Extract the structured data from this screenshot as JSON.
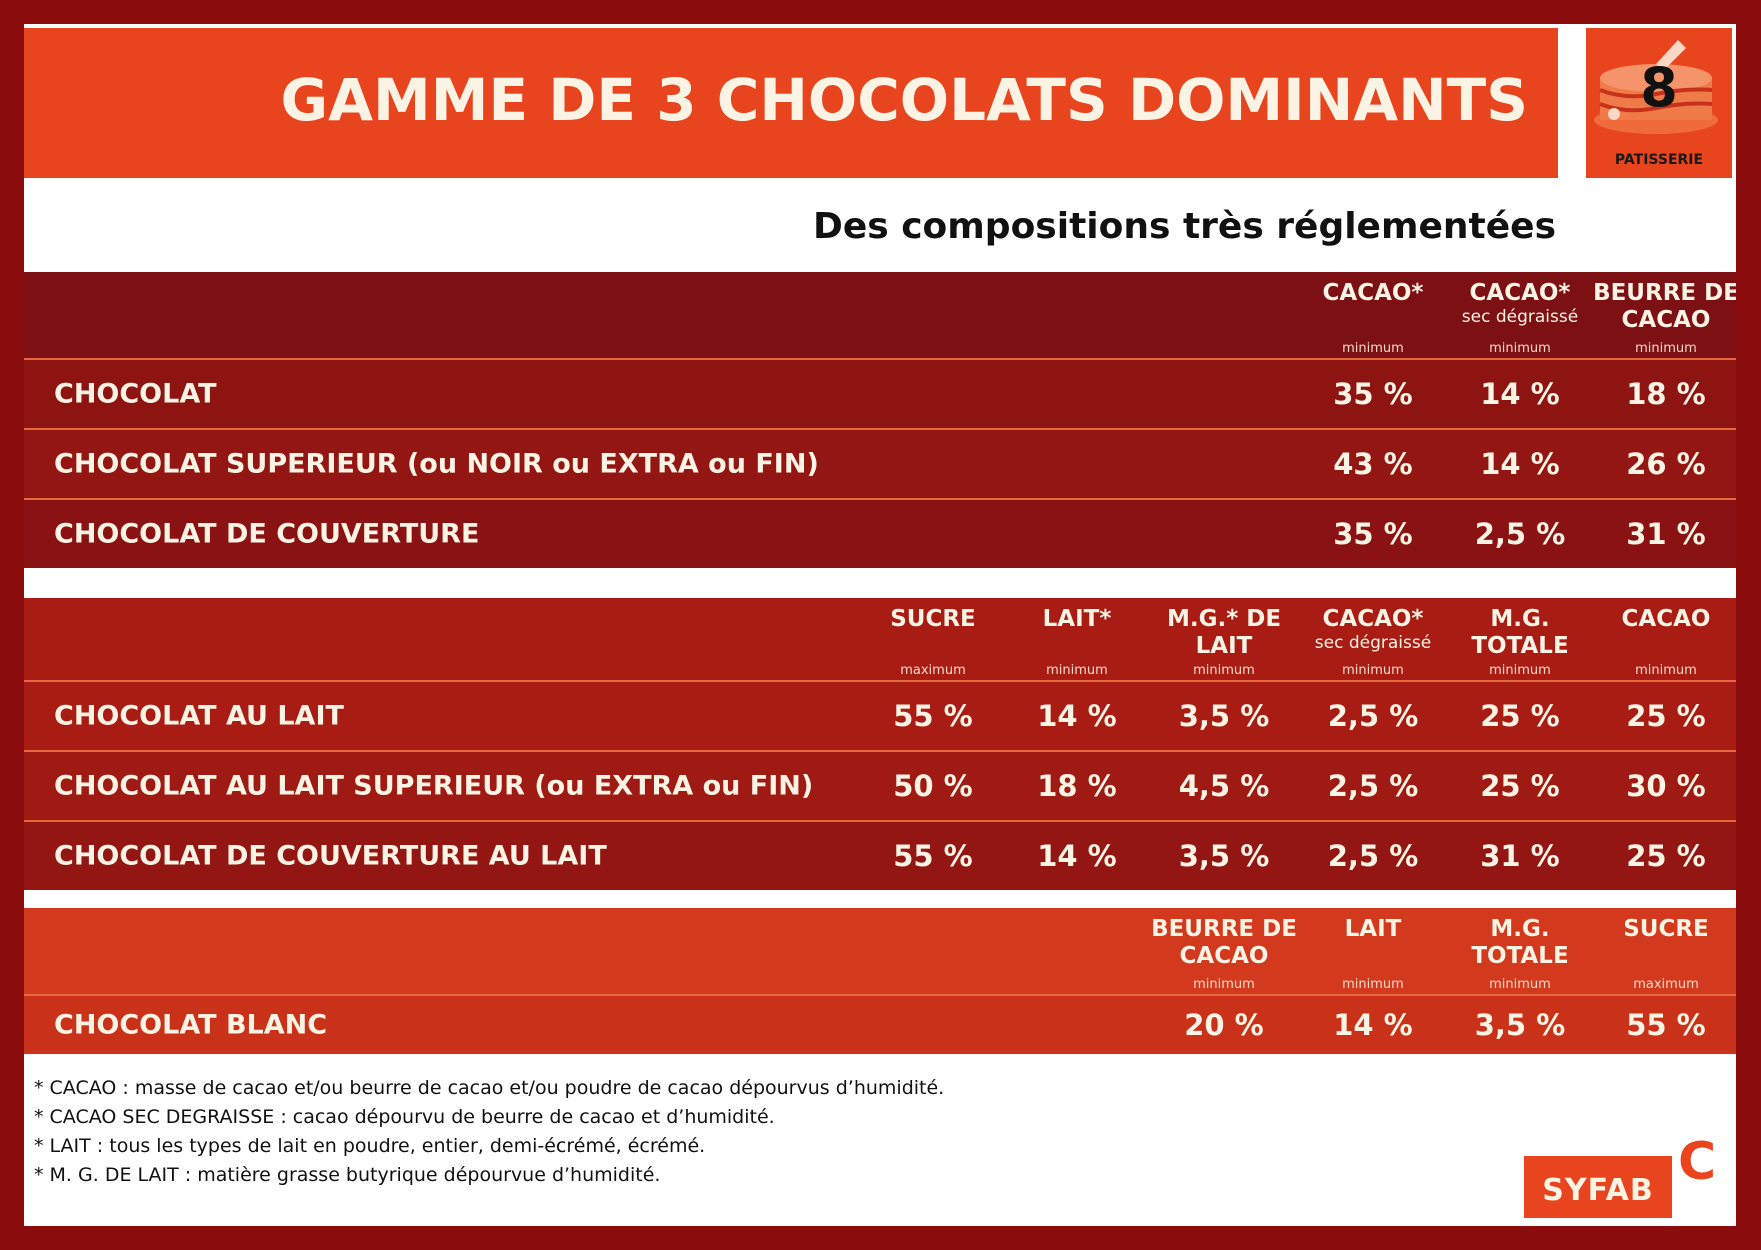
{
  "header": {
    "title": "GAMME DE 3 CHOCOLATS DOMINANTS",
    "badge_number": "8",
    "badge_label": "PATISSERIE"
  },
  "subtitle": "Des compositions très réglementées",
  "section1": {
    "columns": [
      {
        "name": "CACAO*",
        "sub": "",
        "qual": "minimum"
      },
      {
        "name": "CACAO*",
        "sub": "sec dégraissé",
        "qual": "minimum"
      },
      {
        "name": "BEURRE DE CACAO",
        "sub": "",
        "qual": "minimum"
      }
    ],
    "rows": [
      {
        "label": "CHOCOLAT",
        "values": [
          "35 %",
          "14 %",
          "18 %"
        ]
      },
      {
        "label": "CHOCOLAT SUPERIEUR (ou NOIR ou EXTRA ou FIN)",
        "values": [
          "43 %",
          "14 %",
          "26 %"
        ]
      },
      {
        "label": "CHOCOLAT DE COUVERTURE",
        "values": [
          "35 %",
          "2,5 %",
          "31 %"
        ]
      }
    ]
  },
  "section2": {
    "columns": [
      {
        "name": "SUCRE",
        "sub": "",
        "qual": "maximum"
      },
      {
        "name": "LAIT*",
        "sub": "",
        "qual": "minimum"
      },
      {
        "name": "M.G.* DE LAIT",
        "sub": "",
        "qual": "minimum"
      },
      {
        "name": "CACAO*",
        "sub": "sec dégraissé",
        "qual": "minimum"
      },
      {
        "name": "M.G. TOTALE",
        "sub": "",
        "qual": "minimum"
      },
      {
        "name": "CACAO",
        "sub": "",
        "qual": "minimum"
      }
    ],
    "rows": [
      {
        "label": "CHOCOLAT AU LAIT",
        "values": [
          "55 %",
          "14 %",
          "3,5 %",
          "2,5 %",
          "25 %",
          "25 %"
        ]
      },
      {
        "label": "CHOCOLAT AU LAIT SUPERIEUR (ou EXTRA ou FIN)",
        "values": [
          "50 %",
          "18 %",
          "4,5 %",
          "2,5 %",
          "25 %",
          "30 %"
        ]
      },
      {
        "label": "CHOCOLAT DE COUVERTURE AU LAIT",
        "values": [
          "55 %",
          "14 %",
          "3,5 %",
          "2,5 %",
          "31 %",
          "25 %"
        ]
      }
    ]
  },
  "section3": {
    "columns": [
      {
        "name": "BEURRE DE CACAO",
        "sub": "",
        "qual": "minimum"
      },
      {
        "name": "LAIT",
        "sub": "",
        "qual": "minimum"
      },
      {
        "name": "M.G. TOTALE",
        "sub": "",
        "qual": "minimum"
      },
      {
        "name": "SUCRE",
        "sub": "",
        "qual": "maximum"
      }
    ],
    "rows": [
      {
        "label": "CHOCOLAT BLANC",
        "values": [
          "20 %",
          "14 %",
          "3,5 %",
          "55 %"
        ]
      }
    ]
  },
  "footnotes": [
    "* CACAO : masse de cacao et/ou beurre de cacao et/ou poudre de cacao dépourvus d’humidité.",
    "* CACAO SEC DEGRAISSE : cacao dépourvu de beurre de cacao et d’humidité.",
    "* LAIT : tous les types de lait en poudre, entier, demi-écrémé, écrémé.",
    "* M. G. DE LAIT : matière grasse butyrique dépourvue d’humidité."
  ],
  "logo": {
    "text": "SYFAB",
    "letter": "C"
  },
  "colors": {
    "orange": "#e8441d",
    "dark_red": "#8a0c0c",
    "cream": "#fbf3e4"
  }
}
